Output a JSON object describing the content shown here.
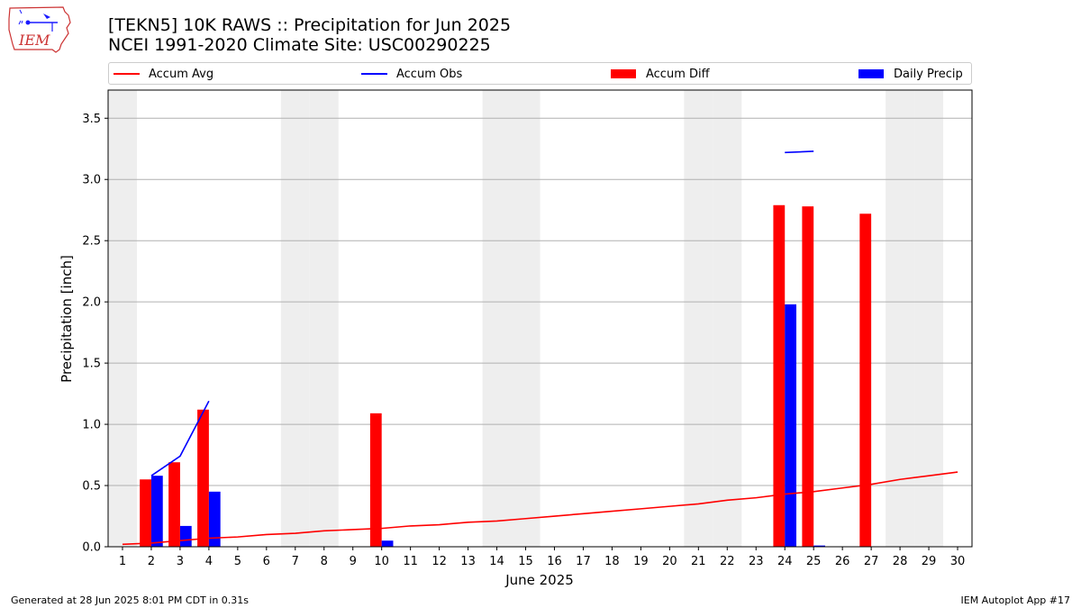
{
  "logo": {
    "text": "IEM",
    "icon": "iowa-state-outline-icon"
  },
  "header": {
    "title_line1": "[TEKN5] 10K RAWS :: Precipitation for Jun 2025",
    "title_line2": "NCEI 1991-2020 Climate Site: USC00290225"
  },
  "footer": {
    "left": "Generated at 28 Jun 2025 8:01 PM CDT in 0.31s",
    "right": "IEM Autoplot App #17"
  },
  "colors": {
    "avg": "#ff0000",
    "obs": "#0000ff",
    "diff": "#ff0000",
    "daily": "#0000ff",
    "weekend": "#eeeeee",
    "grid": "#b0b0b0"
  },
  "chart_data": {
    "type": "bar",
    "xlabel": "June 2025",
    "ylabel": "Precipitation [inch]",
    "xlim": [
      0.5,
      30.5
    ],
    "ylim": [
      0,
      3.73
    ],
    "yticks": [
      0.0,
      0.5,
      1.0,
      1.5,
      2.0,
      2.5,
      3.0,
      3.5
    ],
    "ytick_labels": [
      "0.0",
      "0.5",
      "1.0",
      "1.5",
      "2.0",
      "2.5",
      "3.0",
      "3.5"
    ],
    "x": [
      1,
      2,
      3,
      4,
      5,
      6,
      7,
      8,
      9,
      10,
      11,
      12,
      13,
      14,
      15,
      16,
      17,
      18,
      19,
      20,
      21,
      22,
      23,
      24,
      25,
      26,
      27,
      28,
      29,
      30
    ],
    "xtick_labels": [
      "1",
      "2",
      "3",
      "4",
      "5",
      "6",
      "7",
      "8",
      "9",
      "10",
      "11",
      "12",
      "13",
      "14",
      "15",
      "16",
      "17",
      "18",
      "19",
      "20",
      "21",
      "22",
      "23",
      "24",
      "25",
      "26",
      "27",
      "28",
      "29",
      "30"
    ],
    "weekend_days": [
      1,
      7,
      8,
      14,
      15,
      21,
      22,
      28,
      29
    ],
    "grid": true,
    "legend_position": "top",
    "series": [
      {
        "name": "Accum Avg",
        "kind": "line",
        "values": [
          0.02,
          0.03,
          0.05,
          0.07,
          0.08,
          0.1,
          0.11,
          0.13,
          0.14,
          0.15,
          0.17,
          0.18,
          0.2,
          0.21,
          0.23,
          0.25,
          0.27,
          0.29,
          0.31,
          0.33,
          0.35,
          0.38,
          0.4,
          0.43,
          0.45,
          0.48,
          0.51,
          0.55,
          0.58,
          0.61
        ]
      },
      {
        "name": "Accum Obs",
        "kind": "line",
        "values": [
          null,
          0.58,
          0.74,
          1.19,
          null,
          null,
          null,
          null,
          null,
          null,
          null,
          null,
          null,
          null,
          null,
          null,
          null,
          null,
          null,
          null,
          null,
          null,
          null,
          3.22,
          3.23,
          null,
          null,
          null,
          null,
          null
        ]
      },
      {
        "name": "Accum Diff",
        "kind": "bar",
        "values": [
          0,
          0.55,
          0.69,
          1.12,
          0,
          0,
          0,
          0,
          0,
          1.09,
          0,
          0,
          0,
          0,
          0,
          0,
          0,
          0,
          0,
          0,
          0,
          0,
          0,
          2.79,
          2.78,
          0,
          2.72,
          0,
          0,
          0
        ]
      },
      {
        "name": "Daily Precip",
        "kind": "bar",
        "values": [
          0,
          0.58,
          0.17,
          0.45,
          0,
          0,
          0,
          0,
          0,
          0.05,
          0,
          0,
          0,
          0,
          0,
          0,
          0,
          0,
          0,
          0,
          0,
          0,
          0,
          1.98,
          0.01,
          0,
          0,
          0,
          0,
          0
        ]
      }
    ]
  }
}
